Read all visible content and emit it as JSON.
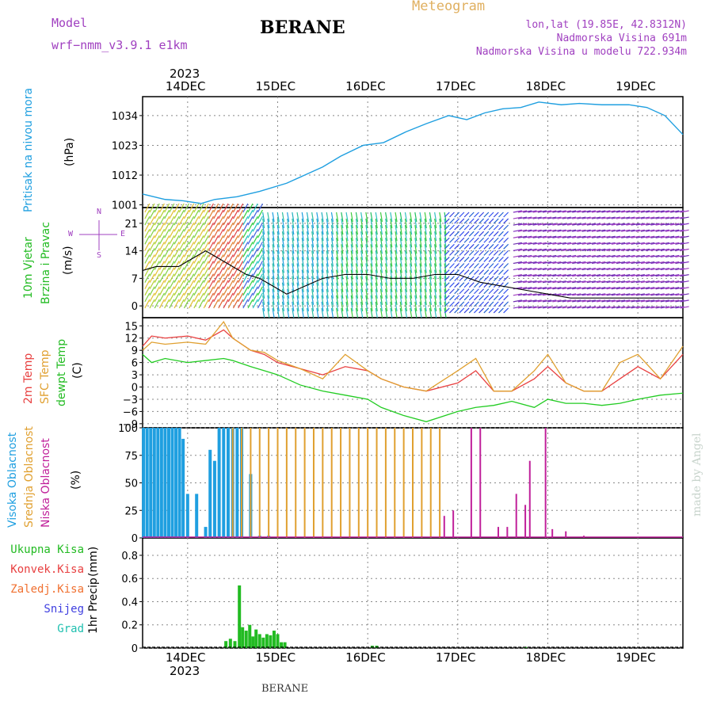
{
  "header": {
    "model_label": "Model",
    "model_name": "wrf−nmm_v3.9.1  e1km",
    "station": "BERANE",
    "product": "Meteogram",
    "lonlat": "lon,lat (19.85E, 42.8312N)",
    "elevation": "Nadmorska Visina 691m",
    "model_elevation": "Nadmorska Visina u modelu 722.934m",
    "credit": "made by Angel",
    "footer_station": "BERANE"
  },
  "time_axis": {
    "year": "2023",
    "day_labels": [
      "14DEC",
      "15DEC",
      "16DEC",
      "17DEC",
      "18DEC",
      "19DEC"
    ]
  },
  "colors": {
    "pressure": "#1f9fe0",
    "t2m": "#e84040",
    "sfc": "#e0a030",
    "dewpt": "#22cc22",
    "high_cloud": "#1f9fe0",
    "mid_cloud": "#e0a030",
    "low_cloud": "#c0209a",
    "total_precip": "#22bb22",
    "conv_precip": "#e84040",
    "frozen_precip": "#f07030",
    "snow": "#4040e0",
    "graupel": "#20c0b0",
    "wind_speed": "#000000",
    "compass": "#a040c0"
  },
  "chart_data": [
    {
      "type": "line",
      "title": "",
      "ylabel": "Pritisak na nivou mora",
      "units": "(hPa)",
      "yticks": [
        "1034",
        "1023",
        "1012",
        "1001"
      ],
      "ylim": [
        1000,
        1041
      ],
      "x_days": [
        0,
        0.5,
        0.9,
        1.3,
        1.6,
        2.1,
        2.6,
        3.2,
        3.6,
        4.0,
        4.4,
        4.9,
        5.35,
        5.85,
        6.3,
        6.8,
        7.2,
        7.6,
        8.0,
        8.4,
        8.8,
        9.3,
        9.7,
        10.2,
        10.8,
        11.2,
        11.6,
        12.0
      ],
      "series": [
        {
          "values": [
            1005,
            1003,
            1002.5,
            1001.5,
            1003,
            1004,
            1006,
            1009,
            1012,
            1015,
            1019,
            1023,
            1024,
            1028,
            1031,
            1034,
            1032.5,
            1035,
            1036.5,
            1037,
            1039,
            1038,
            1038.5,
            1038,
            1038,
            1037,
            1034,
            1027
          ]
        }
      ]
    },
    {
      "type": "line",
      "title": "",
      "ylabel": [
        "10m Vjetar",
        "Brzina i Pravac"
      ],
      "units": "(m/s)",
      "yticks": [
        "21",
        "14",
        "7",
        "0"
      ],
      "ylim": [
        -3,
        25
      ],
      "compass_labels": [
        "N",
        "S",
        "W",
        "E"
      ],
      "x_days": [
        0,
        0.3,
        0.8,
        1.1,
        1.4,
        1.7,
        2.0,
        2.3,
        2.6,
        2.9,
        3.2,
        3.6,
        4.0,
        4.5,
        5.0,
        5.5,
        6.0,
        6.5,
        7.0,
        7.5,
        8.0,
        8.5,
        9.0,
        9.5,
        10.0,
        10.5,
        11.0,
        11.5,
        12.0
      ],
      "series": [
        {
          "values": [
            9,
            10,
            10,
            12,
            14,
            12,
            10,
            8,
            7,
            5,
            3,
            5,
            7,
            8,
            8,
            7,
            7,
            8,
            8,
            6,
            5,
            4,
            3,
            2,
            2,
            2,
            2,
            2,
            2
          ]
        }
      ]
    },
    {
      "type": "line",
      "title": "",
      "ylabel": [
        "2m Temp",
        "SFC Temp",
        "dewpt Temp"
      ],
      "units": "(C)",
      "yticks": [
        "15",
        "12",
        "9",
        "6",
        "3",
        "0",
        "−3",
        "−6",
        "−9"
      ],
      "ylim": [
        -10,
        17
      ],
      "x_days": [
        0,
        0.2,
        0.5,
        1.0,
        1.4,
        1.8,
        2.0,
        2.4,
        2.7,
        3.0,
        3.5,
        4.0,
        4.5,
        5.0,
        5.3,
        5.8,
        6.3,
        7.0,
        7.4,
        7.8,
        8.2,
        8.7,
        9.0,
        9.4,
        9.8,
        10.2,
        10.6,
        11.0,
        11.5,
        12.0
      ],
      "series": [
        {
          "name": "2m Temp",
          "color_key": "t2m",
          "values": [
            10,
            12.5,
            12,
            12.5,
            11.5,
            14,
            12,
            9,
            8,
            6,
            4.5,
            3,
            5,
            4,
            2,
            0,
            -1,
            1,
            4,
            -1,
            -1,
            2,
            5,
            1,
            -1,
            -1,
            2,
            5,
            2,
            8
          ]
        },
        {
          "name": "SFC Temp",
          "color_key": "sfc",
          "values": [
            9,
            11,
            10.5,
            11,
            10.5,
            16,
            12,
            9,
            8.5,
            6.5,
            4.5,
            2,
            8,
            4,
            2,
            0,
            -1,
            4,
            7,
            -1,
            -1,
            4,
            8,
            1,
            -1,
            -1,
            6,
            8,
            2,
            10
          ]
        },
        {
          "name": "dewpt Temp",
          "color_key": "dewpt",
          "values": [
            8,
            6,
            7,
            6,
            6.5,
            7,
            6.5,
            5,
            4,
            3,
            0.5,
            -1,
            -2,
            -3,
            -5,
            -7,
            -8.5,
            -6,
            -5,
            -4.5,
            -3.5,
            -5,
            -3,
            -4,
            -4,
            -4.5,
            -4,
            -3,
            -2,
            -1.5
          ]
        }
      ]
    },
    {
      "type": "bar",
      "title": "",
      "ylabel": [
        "Visoka Oblacnost",
        "Srednja Oblacnost",
        "Niska Oblacnost"
      ],
      "units": "(%)",
      "yticks": [
        "100",
        "75",
        "50",
        "25",
        "0"
      ],
      "ylim": [
        0,
        100
      ],
      "series": [
        {
          "name": "Visoka Oblacnost",
          "color_key": "high_cloud",
          "x_days": [
            0.02,
            0.1,
            0.18,
            0.26,
            0.34,
            0.42,
            0.5,
            0.58,
            0.66,
            0.74,
            0.82,
            0.9,
            1.0,
            1.2,
            1.4,
            1.5,
            1.6,
            1.7,
            1.8,
            1.9,
            2.0,
            2.1,
            2.2,
            2.4,
            2.6,
            2.8
          ],
          "values": [
            100,
            100,
            100,
            100,
            100,
            100,
            100,
            100,
            100,
            100,
            100,
            90,
            40,
            40,
            10,
            80,
            70,
            100,
            100,
            100,
            100,
            100,
            100,
            58,
            2,
            2
          ]
        },
        {
          "name": "Srednja Oblacnost",
          "color_key": "mid_cloud",
          "x_days": [
            2.0,
            2.2,
            2.4,
            2.6,
            2.8,
            3.0,
            3.2,
            3.4,
            3.6,
            3.8,
            4.0,
            4.2,
            4.4,
            4.6,
            4.8,
            5.0,
            5.2,
            5.4,
            5.6,
            5.8,
            6.0,
            6.2,
            6.4,
            6.6
          ],
          "values": [
            100,
            100,
            100,
            100,
            100,
            100,
            100,
            100,
            100,
            100,
            100,
            100,
            100,
            100,
            100,
            100,
            100,
            100,
            100,
            100,
            100,
            100,
            100,
            100
          ]
        },
        {
          "name": "Niska Oblacnost",
          "color_key": "low_cloud",
          "x_days": [
            6.7,
            6.9,
            7.3,
            7.5,
            7.9,
            8.1,
            8.3,
            8.5,
            8.6,
            8.95,
            9.1,
            9.4,
            9.8
          ],
          "values": [
            20,
            25,
            100,
            100,
            10,
            10,
            40,
            30,
            70,
            100,
            8,
            6,
            2
          ]
        }
      ]
    },
    {
      "type": "bar",
      "title": "",
      "ylabel": "1hr Precip",
      "units": "(mm)",
      "yticks": [
        "0.8",
        "0.6",
        "0.4",
        "0.2",
        "0"
      ],
      "ylim": [
        0,
        0.95
      ],
      "legend": [
        "Ukupna Kisa",
        "Konvek.Kisa",
        "Zaledj.Kisa",
        "Snijeg",
        "Grad"
      ],
      "series": [
        {
          "name": "Ukupna Kisa",
          "color_key": "total_precip",
          "x_days": [
            1.85,
            1.95,
            2.05,
            2.15,
            2.22,
            2.3,
            2.38,
            2.45,
            2.52,
            2.6,
            2.68,
            2.76,
            2.84,
            2.92,
            3.0,
            3.08,
            3.16,
            5.1,
            5.2,
            8.5
          ],
          "values": [
            0.06,
            0.08,
            0.06,
            0.54,
            0.18,
            0.15,
            0.2,
            0.1,
            0.16,
            0.12,
            0.09,
            0.12,
            0.11,
            0.15,
            0.12,
            0.05,
            0.05,
            0.02,
            0.02,
            0.01
          ]
        }
      ]
    }
  ]
}
